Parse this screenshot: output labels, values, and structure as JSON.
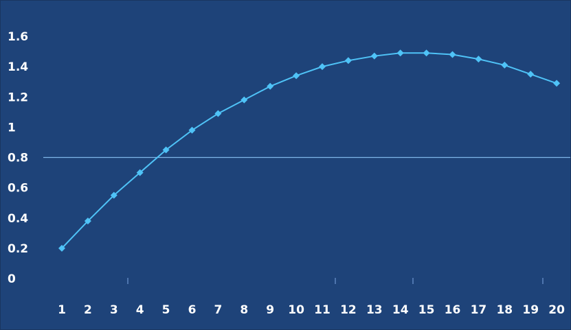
{
  "chart_data": {
    "type": "line",
    "categories": [
      "1",
      "2",
      "3",
      "4",
      "5",
      "6",
      "7",
      "8",
      "9",
      "10",
      "11",
      "12",
      "13",
      "14",
      "15",
      "16",
      "17",
      "18",
      "19",
      "20"
    ],
    "series": [
      {
        "values": [
          0.2,
          0.38,
          0.55,
          0.7,
          0.85,
          0.98,
          1.09,
          1.18,
          1.27,
          1.34,
          1.4,
          1.44,
          1.47,
          1.49,
          1.49,
          1.48,
          1.45,
          1.41,
          1.35,
          1.29
        ]
      }
    ],
    "y_ticks": [
      "0",
      "0.2",
      "0.4",
      "0.6",
      "0.8",
      "1",
      "1.2",
      "1.4",
      "1.6"
    ],
    "ylim": [
      0,
      1.6
    ],
    "reference_line": {
      "y": 0.8
    },
    "grid": false,
    "legend": "none",
    "title": "",
    "xlabel": "",
    "ylabel": ""
  },
  "colors": {
    "background": "#1e4379",
    "series": "#4fc3f7",
    "reference_line": "#7fb6ea",
    "text": "#ffffff"
  }
}
